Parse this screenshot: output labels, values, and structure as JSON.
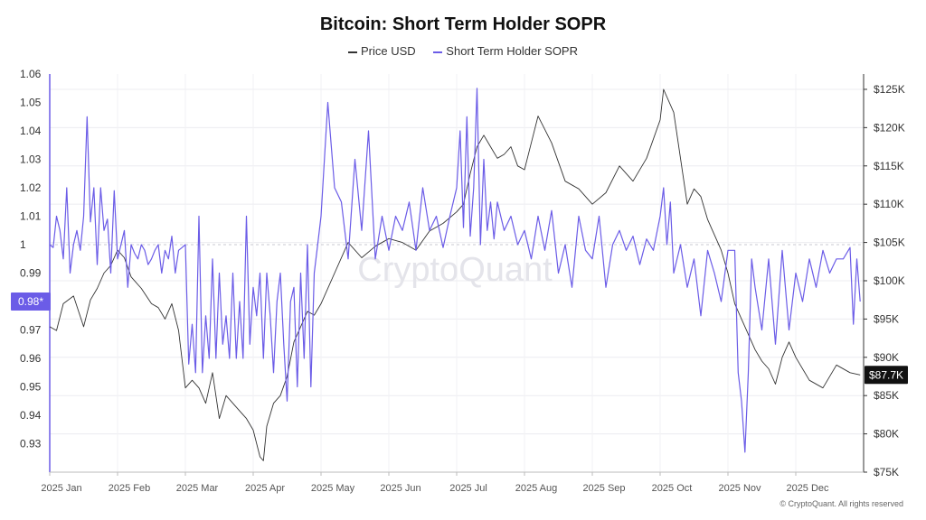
{
  "title": "Bitcoin: Short Term Holder SOPR",
  "copyright": "© CryptoQuant. All rights reserved",
  "watermark": "CryptoQuant",
  "legend": [
    {
      "label": "Price USD",
      "color": "#333333"
    },
    {
      "label": "Short Term Holder SOPR",
      "color": "#6b5ce7"
    }
  ],
  "chart_data": {
    "type": "line",
    "title": "Bitcoin: Short Term Holder SOPR",
    "x_ticks": [
      "2025 Jan",
      "2025 Feb",
      "2025 Mar",
      "2025 Apr",
      "2025 May",
      "2025 Jun",
      "2025 Jul",
      "2025 Aug",
      "2025 Sep",
      "2025 Oct",
      "2025 Nov",
      "2025 Dec"
    ],
    "xlim": [
      0,
      12
    ],
    "left_axis": {
      "ylim": [
        0.92,
        1.06
      ],
      "ticks": [
        0.93,
        0.94,
        0.95,
        0.96,
        0.97,
        0.98,
        0.99,
        1,
        1.01,
        1.02,
        1.03,
        1.04,
        1.05,
        1.06
      ],
      "tick_labels": [
        "0.93",
        "0.94",
        "0.95",
        "0.96",
        "0.97",
        "0.98",
        "0.99",
        "1",
        "1.01",
        "1.02",
        "1.03",
        "1.04",
        "1.05",
        "1.06"
      ]
    },
    "right_axis": {
      "ylim": [
        75000,
        127000
      ],
      "ticks": [
        75000,
        80000,
        85000,
        90000,
        95000,
        100000,
        105000,
        110000,
        115000,
        120000,
        125000
      ],
      "tick_labels": [
        "$75K",
        "$80K",
        "$85K",
        "$90K",
        "$95K",
        "$100K",
        "$105K",
        "$110K",
        "$115K",
        "$120K",
        "$125K"
      ]
    },
    "reference_line": 1,
    "current_badges": {
      "sopr": "0.98*",
      "price": "$87.7K"
    },
    "series": [
      {
        "name": "Price USD",
        "axis": "right",
        "color": "#333333",
        "x": [
          0.0,
          0.1,
          0.2,
          0.35,
          0.5,
          0.6,
          0.7,
          0.8,
          0.9,
          1.0,
          1.1,
          1.2,
          1.35,
          1.5,
          1.6,
          1.7,
          1.8,
          1.9,
          2.0,
          2.1,
          2.2,
          2.3,
          2.4,
          2.5,
          2.6,
          2.7,
          2.8,
          2.9,
          3.0,
          3.1,
          3.15,
          3.2,
          3.3,
          3.4,
          3.5,
          3.6,
          3.7,
          3.8,
          3.9,
          4.0,
          4.2,
          4.4,
          4.6,
          4.8,
          5.0,
          5.2,
          5.4,
          5.6,
          5.8,
          6.0,
          6.1,
          6.2,
          6.3,
          6.4,
          6.5,
          6.6,
          6.7,
          6.8,
          6.9,
          7.0,
          7.1,
          7.2,
          7.4,
          7.6,
          7.8,
          8.0,
          8.2,
          8.4,
          8.6,
          8.8,
          9.0,
          9.05,
          9.2,
          9.3,
          9.4,
          9.5,
          9.6,
          9.7,
          9.8,
          9.9,
          10.0,
          10.1,
          10.2,
          10.3,
          10.4,
          10.5,
          10.6,
          10.7,
          10.8,
          10.9,
          11.0,
          11.2,
          11.4,
          11.6,
          11.8,
          11.95
        ],
        "values": [
          94000,
          93500,
          97000,
          98000,
          94000,
          97500,
          99000,
          101000,
          102000,
          104000,
          103000,
          100500,
          99000,
          97000,
          96500,
          95000,
          97000,
          93500,
          86000,
          87000,
          86000,
          84000,
          88000,
          82000,
          85000,
          84000,
          83000,
          82000,
          80500,
          77000,
          76500,
          81000,
          84000,
          85000,
          87500,
          92000,
          94000,
          96000,
          95500,
          97000,
          101000,
          105000,
          103000,
          104500,
          105500,
          105000,
          104000,
          106500,
          107500,
          109000,
          110000,
          114000,
          117500,
          119000,
          117500,
          116000,
          116500,
          117500,
          115000,
          114500,
          118000,
          121500,
          118000,
          113000,
          112000,
          110000,
          111500,
          115000,
          113000,
          116000,
          121000,
          125000,
          122000,
          116000,
          110000,
          112000,
          111000,
          108000,
          106000,
          104000,
          101000,
          97000,
          95000,
          93000,
          91000,
          89500,
          88500,
          86500,
          90000,
          92000,
          90000,
          87000,
          86000,
          89000,
          88000,
          87700
        ]
      },
      {
        "name": "Short Term Holder SOPR",
        "axis": "left",
        "color": "#6b5ce7",
        "x": [
          0.0,
          0.05,
          0.1,
          0.15,
          0.2,
          0.25,
          0.3,
          0.35,
          0.4,
          0.45,
          0.5,
          0.55,
          0.6,
          0.65,
          0.7,
          0.75,
          0.8,
          0.85,
          0.9,
          0.95,
          1.0,
          1.05,
          1.1,
          1.15,
          1.2,
          1.25,
          1.3,
          1.35,
          1.4,
          1.45,
          1.5,
          1.55,
          1.6,
          1.65,
          1.7,
          1.75,
          1.8,
          1.85,
          1.9,
          1.95,
          2.0,
          2.05,
          2.1,
          2.15,
          2.2,
          2.25,
          2.3,
          2.35,
          2.4,
          2.45,
          2.5,
          2.55,
          2.6,
          2.65,
          2.7,
          2.75,
          2.8,
          2.85,
          2.9,
          2.95,
          3.0,
          3.05,
          3.1,
          3.15,
          3.2,
          3.25,
          3.3,
          3.35,
          3.4,
          3.45,
          3.5,
          3.55,
          3.6,
          3.65,
          3.7,
          3.75,
          3.8,
          3.85,
          3.9,
          3.95,
          4.0,
          4.1,
          4.2,
          4.3,
          4.4,
          4.5,
          4.6,
          4.7,
          4.8,
          4.9,
          5.0,
          5.1,
          5.2,
          5.3,
          5.4,
          5.5,
          5.6,
          5.7,
          5.8,
          5.9,
          6.0,
          6.05,
          6.1,
          6.15,
          6.2,
          6.25,
          6.3,
          6.35,
          6.4,
          6.45,
          6.5,
          6.55,
          6.6,
          6.7,
          6.8,
          6.9,
          7.0,
          7.1,
          7.2,
          7.3,
          7.4,
          7.5,
          7.6,
          7.7,
          7.8,
          7.9,
          8.0,
          8.1,
          8.2,
          8.3,
          8.4,
          8.5,
          8.6,
          8.7,
          8.8,
          8.9,
          9.0,
          9.05,
          9.1,
          9.15,
          9.2,
          9.3,
          9.4,
          9.5,
          9.6,
          9.7,
          9.8,
          9.9,
          10.0,
          10.1,
          10.15,
          10.2,
          10.25,
          10.3,
          10.35,
          10.4,
          10.5,
          10.6,
          10.7,
          10.8,
          10.9,
          11.0,
          11.1,
          11.2,
          11.3,
          11.4,
          11.5,
          11.6,
          11.7,
          11.8,
          11.85,
          11.9,
          11.95
        ],
        "values": [
          1.0,
          0.999,
          1.01,
          1.005,
          0.995,
          1.02,
          0.99,
          1.0,
          1.005,
          0.998,
          1.01,
          1.045,
          1.008,
          1.02,
          0.993,
          1.02,
          1.005,
          1.009,
          0.99,
          1.019,
          0.995,
          1.0,
          1.005,
          0.985,
          1.0,
          0.997,
          0.995,
          1.0,
          0.998,
          0.993,
          0.995,
          0.998,
          1.0,
          0.99,
          0.998,
          0.995,
          1.003,
          0.99,
          0.998,
          0.999,
          1.0,
          0.958,
          0.972,
          0.955,
          1.01,
          0.955,
          0.975,
          0.96,
          0.995,
          0.96,
          0.99,
          0.965,
          0.975,
          0.96,
          0.99,
          0.96,
          0.98,
          0.96,
          1.01,
          0.965,
          0.985,
          0.975,
          0.99,
          0.96,
          0.99,
          0.975,
          0.955,
          0.98,
          0.99,
          0.965,
          0.945,
          0.98,
          0.985,
          0.95,
          0.99,
          0.96,
          1.0,
          0.95,
          0.99,
          1.0,
          1.01,
          1.05,
          1.02,
          1.015,
          0.995,
          1.03,
          1.005,
          1.04,
          0.995,
          1.01,
          0.998,
          1.01,
          1.005,
          1.015,
          0.998,
          1.02,
          1.005,
          1.01,
          0.999,
          1.01,
          1.02,
          1.04,
          1.006,
          1.045,
          1.003,
          1.02,
          1.055,
          1.0,
          1.03,
          1.005,
          1.015,
          1.002,
          1.015,
          1.005,
          1.01,
          1.0,
          1.005,
          0.995,
          1.01,
          0.998,
          1.012,
          0.99,
          1.0,
          0.985,
          1.01,
          0.998,
          0.995,
          1.01,
          0.985,
          1.0,
          1.005,
          0.998,
          1.003,
          0.993,
          1.002,
          0.998,
          1.01,
          1.02,
          1.0,
          1.015,
          0.99,
          1.0,
          0.985,
          0.995,
          0.975,
          0.998,
          0.99,
          0.98,
          0.998,
          0.998,
          0.955,
          0.945,
          0.927,
          0.955,
          0.995,
          0.985,
          0.97,
          0.995,
          0.965,
          0.998,
          0.97,
          0.99,
          0.98,
          0.995,
          0.985,
          0.998,
          0.99,
          0.995,
          0.995,
          0.999,
          0.972,
          0.995,
          0.98
        ]
      }
    ]
  }
}
